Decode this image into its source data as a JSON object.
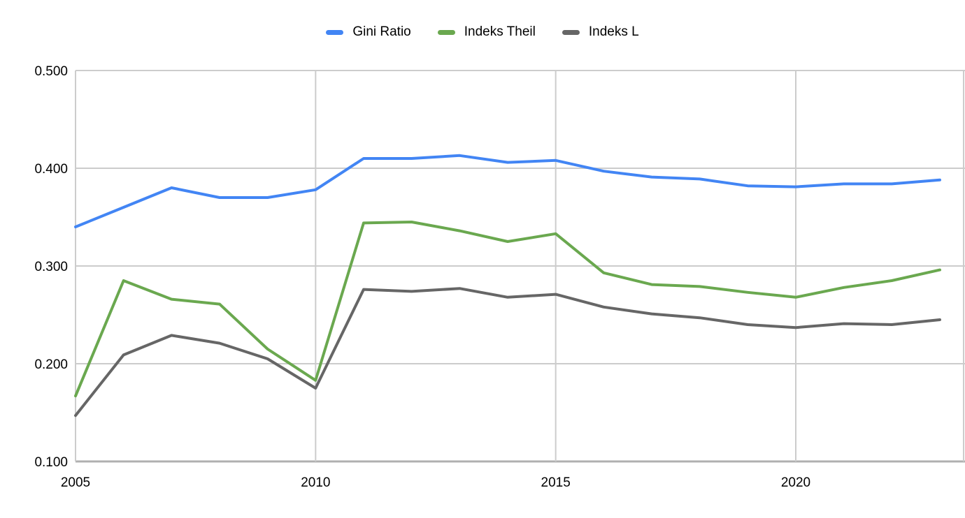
{
  "chart_data": {
    "type": "line",
    "title": "",
    "xlabel": "",
    "ylabel": "",
    "grid": "on",
    "legend_position": "top-center",
    "x": [
      2005,
      2006,
      2007,
      2008,
      2009,
      2010,
      2011,
      2012,
      2013,
      2014,
      2015,
      2016,
      2017,
      2018,
      2019,
      2020,
      2021,
      2022,
      2023
    ],
    "series": [
      {
        "name": "Gini Ratio",
        "color": "#4285f4",
        "values": [
          0.34,
          0.36,
          0.38,
          0.37,
          0.37,
          0.378,
          0.41,
          0.41,
          0.413,
          0.406,
          0.408,
          0.397,
          0.391,
          0.389,
          0.382,
          0.381,
          0.384,
          0.384,
          0.388
        ]
      },
      {
        "name": "Indeks Theil",
        "color": "#6aa84f",
        "values": [
          0.167,
          0.285,
          0.266,
          0.261,
          0.215,
          0.183,
          0.344,
          0.345,
          0.336,
          0.325,
          0.333,
          0.293,
          0.281,
          0.279,
          0.273,
          0.268,
          0.278,
          0.285,
          0.296
        ]
      },
      {
        "name": "Indeks L",
        "color": "#666666",
        "values": [
          0.147,
          0.209,
          0.229,
          0.221,
          0.205,
          0.175,
          0.276,
          0.274,
          0.277,
          0.268,
          0.271,
          0.258,
          0.251,
          0.247,
          0.24,
          0.237,
          0.241,
          0.24,
          0.245
        ]
      }
    ],
    "ylim": [
      0.1,
      0.5
    ],
    "xlim": [
      2005,
      2023.5
    ],
    "y_ticks": [
      {
        "value": 0.5,
        "label": "0.500"
      },
      {
        "value": 0.4,
        "label": "0.400"
      },
      {
        "value": 0.3,
        "label": "0.300"
      },
      {
        "value": 0.2,
        "label": "0.200"
      },
      {
        "value": 0.1,
        "label": "0.100"
      }
    ],
    "x_ticks": [
      {
        "value": 2005,
        "label": "2005"
      },
      {
        "value": 2010,
        "label": "2010"
      },
      {
        "value": 2015,
        "label": "2015"
      },
      {
        "value": 2020,
        "label": "2020"
      }
    ]
  },
  "colors": {
    "background": "#ffffff",
    "gridline": "#cccccc",
    "axis_line": "#b0b0b0",
    "tick_text": "#000000"
  }
}
